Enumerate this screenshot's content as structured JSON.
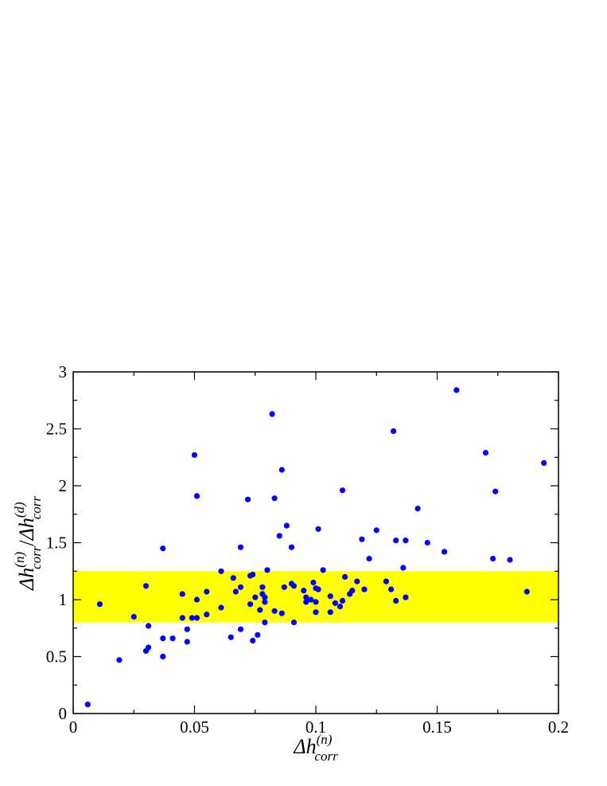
{
  "chart_data": {
    "type": "scatter",
    "title": "",
    "xlabel": {
      "base": "Δh",
      "sup": "(n)",
      "sub": "corr"
    },
    "ylabel": {
      "num_base": "Δh",
      "num_sup": "(n)",
      "num_sub": "corr",
      "sep": "/",
      "den_base": "Δh",
      "den_sup": "(d)",
      "den_sub": "corr"
    },
    "xlim": [
      0,
      0.2
    ],
    "ylim": [
      0,
      3
    ],
    "x_ticks": [
      0,
      0.05,
      0.1,
      0.15,
      0.2
    ],
    "x_tick_labels": [
      "0",
      "0.05",
      "0.1",
      "0.15",
      "0.2"
    ],
    "y_ticks": [
      0,
      0.5,
      1,
      1.5,
      2,
      2.5,
      3
    ],
    "y_tick_labels": [
      "0",
      "0.5",
      "1",
      "1.5",
      "2",
      "2.5",
      "3"
    ],
    "grid": false,
    "band": {
      "y0": 0.8,
      "y1": 1.25,
      "color": "#ffff00"
    },
    "marker_color": "#0000ff",
    "points": [
      [
        0.006,
        0.08
      ],
      [
        0.011,
        0.96
      ],
      [
        0.019,
        0.47
      ],
      [
        0.025,
        0.85
      ],
      [
        0.03,
        1.12
      ],
      [
        0.03,
        0.55
      ],
      [
        0.031,
        0.77
      ],
      [
        0.031,
        0.58
      ],
      [
        0.037,
        0.66
      ],
      [
        0.037,
        0.5
      ],
      [
        0.037,
        1.45
      ],
      [
        0.041,
        0.66
      ],
      [
        0.045,
        1.05
      ],
      [
        0.045,
        0.84
      ],
      [
        0.047,
        0.74
      ],
      [
        0.047,
        0.63
      ],
      [
        0.049,
        0.84
      ],
      [
        0.05,
        2.27
      ],
      [
        0.051,
        0.84
      ],
      [
        0.051,
        1.91
      ],
      [
        0.051,
        1.0
      ],
      [
        0.055,
        0.87
      ],
      [
        0.055,
        1.07
      ],
      [
        0.061,
        1.25
      ],
      [
        0.061,
        0.93
      ],
      [
        0.065,
        0.67
      ],
      [
        0.066,
        1.19
      ],
      [
        0.067,
        1.07
      ],
      [
        0.069,
        1.11
      ],
      [
        0.069,
        1.46
      ],
      [
        0.069,
        0.74
      ],
      [
        0.072,
        1.88
      ],
      [
        0.073,
        1.21
      ],
      [
        0.073,
        0.96
      ],
      [
        0.074,
        1.22
      ],
      [
        0.074,
        0.64
      ],
      [
        0.075,
        1.02
      ],
      [
        0.076,
        0.69
      ],
      [
        0.077,
        0.91
      ],
      [
        0.078,
        1.11
      ],
      [
        0.078,
        1.05
      ],
      [
        0.079,
        0.98
      ],
      [
        0.079,
        1.02
      ],
      [
        0.079,
        0.8
      ],
      [
        0.08,
        1.26
      ],
      [
        0.082,
        2.63
      ],
      [
        0.083,
        0.9
      ],
      [
        0.083,
        1.89
      ],
      [
        0.085,
        1.56
      ],
      [
        0.086,
        2.14
      ],
      [
        0.086,
        0.88
      ],
      [
        0.087,
        1.11
      ],
      [
        0.088,
        1.65
      ],
      [
        0.09,
        1.14
      ],
      [
        0.09,
        1.46
      ],
      [
        0.091,
        0.8
      ],
      [
        0.091,
        1.12
      ],
      [
        0.095,
        1.08
      ],
      [
        0.096,
        1.02
      ],
      [
        0.096,
        0.98
      ],
      [
        0.098,
        1.0
      ],
      [
        0.099,
        1.15
      ],
      [
        0.1,
        0.98
      ],
      [
        0.1,
        1.1
      ],
      [
        0.1,
        0.89
      ],
      [
        0.101,
        1.09
      ],
      [
        0.101,
        1.62
      ],
      [
        0.103,
        1.26
      ],
      [
        0.106,
        0.89
      ],
      [
        0.106,
        1.03
      ],
      [
        0.108,
        0.97
      ],
      [
        0.11,
        0.94
      ],
      [
        0.111,
        1.96
      ],
      [
        0.111,
        0.99
      ],
      [
        0.112,
        1.2
      ],
      [
        0.114,
        1.05
      ],
      [
        0.115,
        1.08
      ],
      [
        0.117,
        1.16
      ],
      [
        0.119,
        1.53
      ],
      [
        0.12,
        1.09
      ],
      [
        0.122,
        1.36
      ],
      [
        0.125,
        1.61
      ],
      [
        0.129,
        1.16
      ],
      [
        0.131,
        1.09
      ],
      [
        0.132,
        2.48
      ],
      [
        0.133,
        0.99
      ],
      [
        0.133,
        1.52
      ],
      [
        0.136,
        1.28
      ],
      [
        0.137,
        1.52
      ],
      [
        0.137,
        1.02
      ],
      [
        0.142,
        1.8
      ],
      [
        0.146,
        1.5
      ],
      [
        0.153,
        1.42
      ],
      [
        0.158,
        2.84
      ],
      [
        0.17,
        2.29
      ],
      [
        0.173,
        1.36
      ],
      [
        0.174,
        1.95
      ],
      [
        0.18,
        1.35
      ],
      [
        0.187,
        1.07
      ],
      [
        0.194,
        2.2
      ]
    ]
  }
}
